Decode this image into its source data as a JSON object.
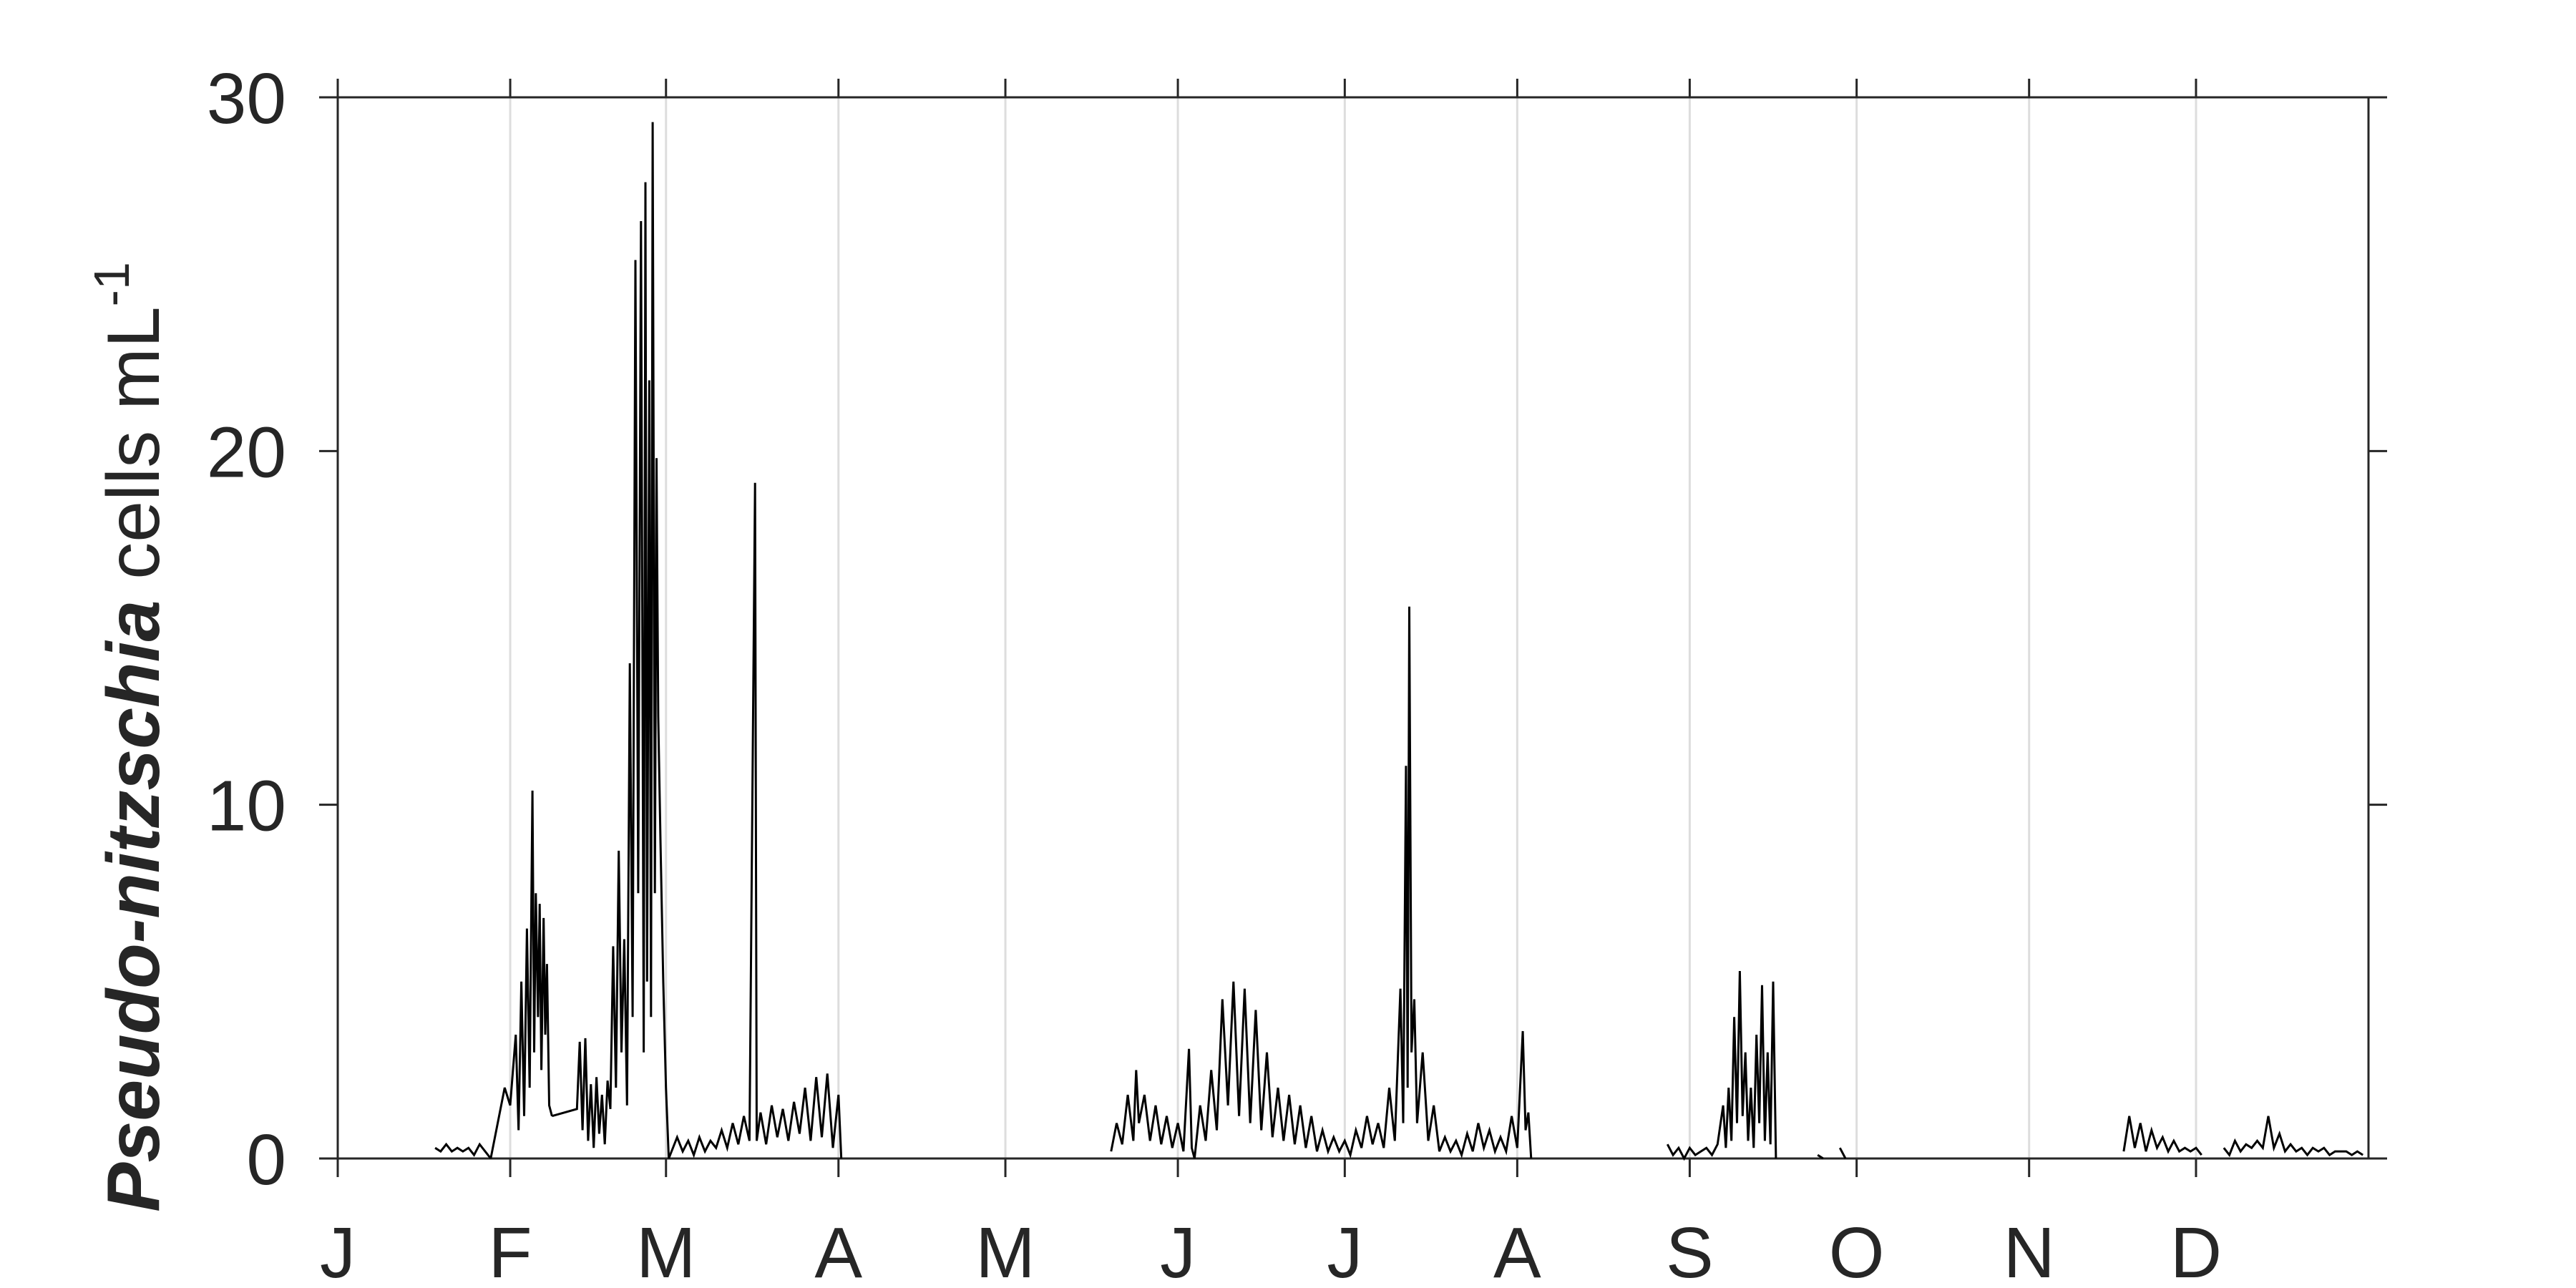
{
  "chart_data": {
    "type": "line",
    "title": "",
    "xlabel": "",
    "ylabel": {
      "italic_bold": "Pseudo-nitzschia",
      "rest": " cells mL",
      "superscript": "-1"
    },
    "xlim": [
      1,
      366
    ],
    "ylim": [
      0,
      30
    ],
    "yticks": [
      0,
      10,
      20,
      30
    ],
    "xticks": [
      {
        "day": 1,
        "label": "J"
      },
      {
        "day": 32,
        "label": "F"
      },
      {
        "day": 60,
        "label": "M"
      },
      {
        "day": 91,
        "label": "A"
      },
      {
        "day": 121,
        "label": "M"
      },
      {
        "day": 152,
        "label": "J"
      },
      {
        "day": 182,
        "label": "J"
      },
      {
        "day": 213,
        "label": "A"
      },
      {
        "day": 244,
        "label": "S"
      },
      {
        "day": 274,
        "label": "O"
      },
      {
        "day": 305,
        "label": "N"
      },
      {
        "day": 335,
        "label": "D"
      }
    ],
    "grid": {
      "x": true,
      "y": false
    },
    "line_color": "#000000",
    "grid_color": "#dddddd",
    "series": [
      {
        "segments": [
          [
            [
              18.5,
              0.3
            ],
            [
              19.5,
              0.2
            ],
            [
              20.5,
              0.4
            ],
            [
              21.5,
              0.2
            ],
            [
              22.5,
              0.3
            ],
            [
              23.5,
              0.2
            ],
            [
              24.5,
              0.3
            ],
            [
              25.5,
              0.1
            ],
            [
              26.5,
              0.4
            ],
            [
              27.5,
              0.2
            ],
            [
              28.5,
              0.0
            ]
          ],
          [
            [
              28.5,
              0.0
            ],
            [
              31,
              2.0
            ],
            [
              32,
              1.5
            ],
            [
              33,
              3.5
            ],
            [
              33.5,
              0.8
            ],
            [
              34,
              5.0
            ],
            [
              34.5,
              1.2
            ],
            [
              35,
              6.5
            ],
            [
              35.5,
              2.0
            ],
            [
              36,
              10.4
            ],
            [
              36.3,
              3.0
            ],
            [
              36.6,
              7.5
            ],
            [
              37,
              4.0
            ],
            [
              37.3,
              7.2
            ],
            [
              37.6,
              2.5
            ],
            [
              38,
              6.8
            ],
            [
              38.3,
              3.5
            ],
            [
              38.6,
              5.5
            ],
            [
              39,
              1.5
            ],
            [
              39.5,
              1.2
            ]
          ],
          [
            [
              39.5,
              1.2
            ],
            [
              44,
              1.4
            ],
            [
              44.5,
              3.3
            ],
            [
              45,
              0.8
            ],
            [
              45.5,
              3.4
            ],
            [
              46,
              0.5
            ],
            [
              46.5,
              2.1
            ],
            [
              47,
              0.3
            ],
            [
              47.5,
              2.3
            ],
            [
              48,
              0.7
            ],
            [
              48.5,
              1.8
            ],
            [
              49,
              0.4
            ],
            [
              49.5,
              2.2
            ],
            [
              50,
              1.4
            ],
            [
              50.5,
              6.0
            ],
            [
              51,
              2.0
            ],
            [
              51.5,
              8.7
            ],
            [
              52,
              3.0
            ],
            [
              52.5,
              6.2
            ],
            [
              53,
              1.5
            ],
            [
              53.5,
              14.0
            ],
            [
              54,
              4.0
            ],
            [
              54.5,
              25.4
            ],
            [
              55,
              7.5
            ],
            [
              55.5,
              26.5
            ],
            [
              56,
              3.0
            ],
            [
              56.3,
              27.6
            ],
            [
              56.6,
              5.0
            ],
            [
              57,
              22.0
            ],
            [
              57.3,
              4.0
            ],
            [
              57.6,
              29.3
            ],
            [
              58,
              7.5
            ],
            [
              58.3,
              19.8
            ],
            [
              58.6,
              12.5
            ],
            [
              59,
              9.0
            ],
            [
              59.5,
              5.0
            ],
            [
              60,
              2.0
            ],
            [
              60.5,
              0.0
            ]
          ],
          [
            [
              60.5,
              0.0
            ],
            [
              62,
              0.6
            ],
            [
              63,
              0.2
            ],
            [
              64,
              0.5
            ],
            [
              65,
              0.1
            ],
            [
              66,
              0.6
            ],
            [
              67,
              0.2
            ],
            [
              68,
              0.5
            ],
            [
              69,
              0.3
            ],
            [
              70,
              0.8
            ],
            [
              71,
              0.3
            ],
            [
              72,
              1.0
            ],
            [
              73,
              0.4
            ],
            [
              74,
              1.2
            ],
            [
              75,
              0.5
            ],
            [
              76,
              19.1
            ],
            [
              76.3,
              0.5
            ],
            [
              77,
              1.3
            ],
            [
              78,
              0.4
            ],
            [
              79,
              1.5
            ],
            [
              80,
              0.6
            ],
            [
              81,
              1.4
            ],
            [
              82,
              0.5
            ],
            [
              83,
              1.6
            ],
            [
              84,
              0.7
            ],
            [
              85,
              2.0
            ],
            [
              86,
              0.5
            ],
            [
              87,
              2.3
            ],
            [
              88,
              0.6
            ],
            [
              89,
              2.4
            ],
            [
              90,
              0.3
            ],
            [
              91,
              1.8
            ],
            [
              91.5,
              0.0
            ]
          ],
          [
            [
              140,
              0.2
            ],
            [
              141,
              1.0
            ],
            [
              142,
              0.4
            ],
            [
              143,
              1.8
            ],
            [
              144,
              0.5
            ],
            [
              144.5,
              2.5
            ],
            [
              145,
              1.0
            ],
            [
              146,
              1.8
            ],
            [
              147,
              0.5
            ],
            [
              148,
              1.5
            ],
            [
              149,
              0.4
            ],
            [
              150,
              1.2
            ],
            [
              151,
              0.3
            ],
            [
              152,
              1.0
            ],
            [
              153,
              0.2
            ],
            [
              154,
              3.1
            ],
            [
              154.5,
              0.3
            ],
            [
              155,
              0.0
            ]
          ],
          [
            [
              155,
              0.0
            ],
            [
              156,
              1.5
            ],
            [
              157,
              0.5
            ],
            [
              158,
              2.5
            ],
            [
              159,
              0.8
            ],
            [
              160,
              4.5
            ],
            [
              161,
              1.5
            ],
            [
              162,
              5.0
            ],
            [
              163,
              1.2
            ],
            [
              164,
              4.8
            ],
            [
              165,
              1.0
            ],
            [
              166,
              4.2
            ],
            [
              167,
              0.8
            ],
            [
              168,
              3.0
            ],
            [
              169,
              0.6
            ],
            [
              170,
              2.0
            ],
            [
              171,
              0.5
            ],
            [
              172,
              1.8
            ],
            [
              173,
              0.4
            ],
            [
              174,
              1.5
            ],
            [
              175,
              0.3
            ],
            [
              176,
              1.2
            ],
            [
              177,
              0.2
            ],
            [
              178,
              0.8
            ],
            [
              179,
              0.2
            ],
            [
              180,
              0.6
            ],
            [
              181,
              0.2
            ],
            [
              182,
              0.5
            ],
            [
              183,
              0.1
            ],
            [
              184,
              0.8
            ],
            [
              185,
              0.3
            ],
            [
              186,
              1.2
            ],
            [
              187,
              0.4
            ],
            [
              188,
              1.0
            ],
            [
              189,
              0.3
            ],
            [
              190,
              2.0
            ],
            [
              191,
              0.5
            ],
            [
              192,
              4.8
            ],
            [
              192.5,
              1.0
            ],
            [
              193,
              11.1
            ],
            [
              193.3,
              2.0
            ],
            [
              193.6,
              15.6
            ],
            [
              194,
              3.0
            ],
            [
              194.5,
              4.5
            ],
            [
              195,
              1.0
            ],
            [
              196,
              3.0
            ],
            [
              197,
              0.5
            ],
            [
              198,
              1.5
            ],
            [
              199,
              0.2
            ],
            [
              200,
              0.6
            ],
            [
              201,
              0.2
            ],
            [
              202,
              0.5
            ],
            [
              203,
              0.1
            ],
            [
              204,
              0.7
            ],
            [
              205,
              0.2
            ],
            [
              206,
              1.0
            ],
            [
              207,
              0.3
            ],
            [
              208,
              0.8
            ],
            [
              209,
              0.2
            ],
            [
              210,
              0.6
            ],
            [
              211,
              0.2
            ],
            [
              212,
              1.2
            ],
            [
              213,
              0.3
            ],
            [
              214,
              3.6
            ],
            [
              214.5,
              0.8
            ],
            [
              215,
              1.3
            ],
            [
              215.5,
              0.0
            ]
          ],
          [
            [
              240,
              0.4
            ],
            [
              241,
              0.1
            ],
            [
              242,
              0.3
            ],
            [
              243,
              0.0
            ],
            [
              244,
              0.3
            ],
            [
              245,
              0.1
            ],
            [
              246,
              0.2
            ],
            [
              247,
              0.3
            ],
            [
              248,
              0.1
            ],
            [
              249,
              0.4
            ],
            [
              250,
              1.5
            ],
            [
              250.5,
              0.3
            ],
            [
              251,
              2.0
            ],
            [
              251.5,
              0.5
            ],
            [
              252,
              4.0
            ],
            [
              252.5,
              1.0
            ],
            [
              253,
              5.3
            ],
            [
              253.5,
              1.2
            ],
            [
              254,
              3.0
            ],
            [
              254.5,
              0.5
            ],
            [
              255,
              2.0
            ],
            [
              255.5,
              0.3
            ],
            [
              256,
              3.5
            ],
            [
              256.5,
              1.0
            ],
            [
              257,
              4.9
            ],
            [
              257.5,
              0.5
            ],
            [
              258,
              3.0
            ],
            [
              258.5,
              0.4
            ],
            [
              259,
              5.0
            ],
            [
              259.5,
              0.0
            ]
          ],
          [
            [
              267,
              0.1
            ],
            [
              268,
              0.0
            ]
          ],
          [
            [
              271,
              0.3
            ],
            [
              272,
              0.0
            ]
          ],
          [
            [
              322,
              0.2
            ],
            [
              323,
              1.2
            ],
            [
              324,
              0.3
            ],
            [
              325,
              1.0
            ],
            [
              326,
              0.2
            ],
            [
              327,
              0.8
            ],
            [
              328,
              0.3
            ],
            [
              329,
              0.6
            ],
            [
              330,
              0.2
            ],
            [
              331,
              0.5
            ],
            [
              332,
              0.2
            ],
            [
              333,
              0.3
            ],
            [
              334,
              0.2
            ],
            [
              335,
              0.3
            ],
            [
              336,
              0.1
            ]
          ],
          [
            [
              340,
              0.3
            ],
            [
              341,
              0.1
            ],
            [
              342,
              0.5
            ],
            [
              343,
              0.2
            ],
            [
              344,
              0.4
            ],
            [
              345,
              0.3
            ],
            [
              346,
              0.5
            ],
            [
              347,
              0.3
            ],
            [
              348,
              1.2
            ],
            [
              349,
              0.3
            ],
            [
              350,
              0.7
            ],
            [
              351,
              0.2
            ],
            [
              352,
              0.4
            ],
            [
              353,
              0.2
            ],
            [
              354,
              0.3
            ],
            [
              355,
              0.1
            ],
            [
              356,
              0.3
            ],
            [
              357,
              0.2
            ],
            [
              358,
              0.3
            ],
            [
              359,
              0.1
            ],
            [
              360,
              0.2
            ],
            [
              361,
              0.2
            ],
            [
              362,
              0.2
            ],
            [
              363,
              0.1
            ],
            [
              364,
              0.2
            ],
            [
              365,
              0.1
            ]
          ]
        ]
      }
    ]
  }
}
